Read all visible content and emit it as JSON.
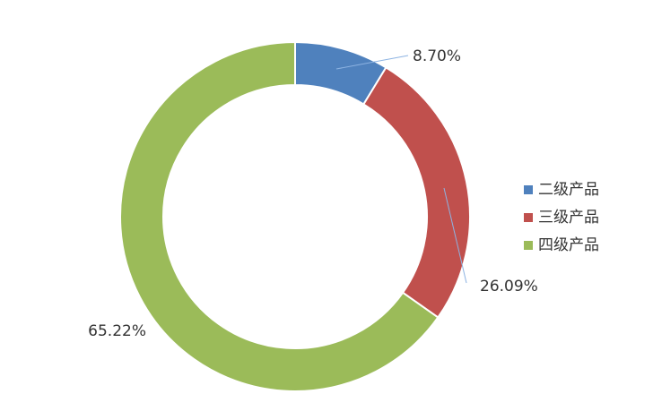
{
  "chart_data": {
    "type": "donut",
    "categories": [
      "二级产品",
      "三级产品",
      "四级产品"
    ],
    "values": [
      8.7,
      26.09,
      65.22
    ],
    "value_labels": [
      "8.70%",
      "26.09%",
      "65.22%"
    ],
    "colors": [
      "#4f81bd",
      "#c0504d",
      "#9bbb59"
    ],
    "legend": "right"
  }
}
